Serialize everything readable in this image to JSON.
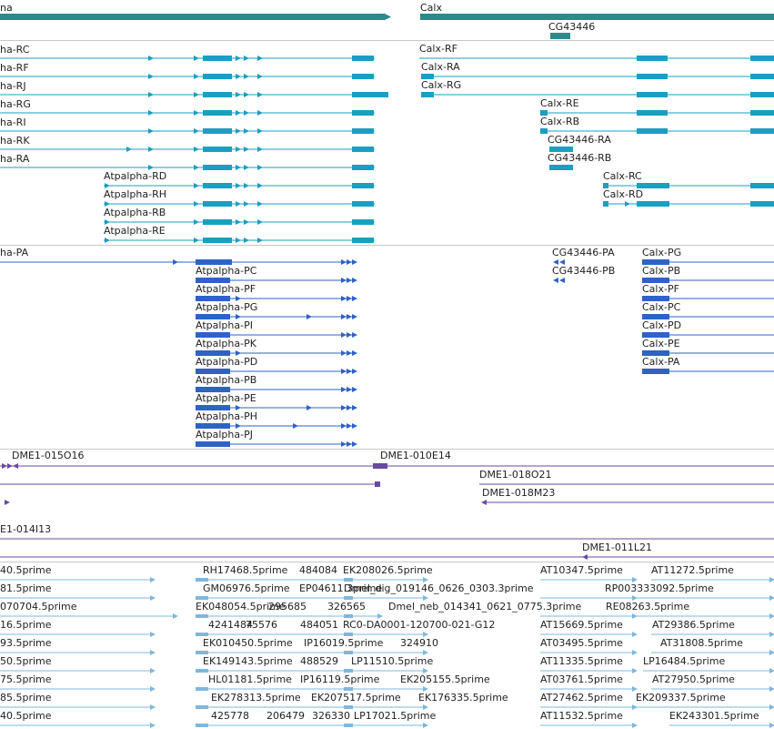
{
  "colors": {
    "summary": "#2b8a8a",
    "transcript_cyan": "#1a9fc0",
    "transcript_blue": "#2e62c6",
    "clone_purple": "#6a4aa0",
    "est_lightblue": "#7db8dc",
    "separator": "#c8c8c8"
  },
  "tracks": {
    "genes": {
      "labels": [
        "na",
        "Calx",
        "CG43446"
      ]
    },
    "transcripts_cyan": {
      "labels": [
        "ha-RC",
        "ha-RF",
        "ha-RJ",
        "ha-RG",
        "ha-RI",
        "ha-RK",
        "ha-RA",
        "Atpalpha-RD",
        "Atpalpha-RH",
        "Atpalpha-RB",
        "Atpalpha-RE",
        "Calx-RF",
        "Calx-RA",
        "Calx-RG",
        "Calx-RE",
        "Calx-RB",
        "CG43446-RA",
        "CG43446-RB",
        "Calx-RC",
        "Calx-RD"
      ]
    },
    "transcripts_blue": {
      "labels": [
        "ha-PA",
        "Atpalpha-PC",
        "Atpalpha-PF",
        "Atpalpha-PG",
        "Atpalpha-PI",
        "Atpalpha-PK",
        "Atpalpha-PD",
        "Atpalpha-PB",
        "Atpalpha-PE",
        "Atpalpha-PH",
        "Atpalpha-PJ",
        "CG43446-PA",
        "CG43446-PB",
        "Calx-PG",
        "Calx-PB",
        "Calx-PF",
        "Calx-PC",
        "Calx-PD",
        "Calx-PE",
        "Calx-PA"
      ]
    },
    "clones": {
      "labels": [
        "DME1-015O16",
        "DME1-010E14",
        "DME1-018O21",
        "DME1-018M23",
        "E1-014I13",
        "DME1-011L21"
      ]
    },
    "ests": {
      "labels": [
        "40.5prime",
        "RH17468.5prime",
        "484084",
        "EK208026.5prime",
        "AT10347.5prime",
        "AT11272.5prime",
        "81.5prime",
        "GM06976.5prime",
        "EP04611.3prime",
        "Dmel_dig_019146_0626_0303.3prime",
        "RP003333092.5prime",
        "070704.5prime",
        "EK048054.5prime",
        "295685",
        "326565",
        "Dmel_neb_014341_0621_0775.3prime",
        "RE08263.5prime",
        "16.5prime",
        "4241484",
        "75576",
        "484051",
        "RC0-DA0001-120700-021-G12",
        "AT15669.5prime",
        "AT29386.5prime",
        "93.5prime",
        "EK010450.5prime",
        "IP16019.5prime",
        "324910",
        "AT03495.5prime",
        "AT31808.5prime",
        "50.5prime",
        "EK149143.5prime",
        "488529",
        "LP11510.5prime",
        "AT11335.5prime",
        "LP16484.5prime",
        "75.5prime",
        "HL01181.5prime",
        "IP16119.5prime",
        "EK205155.5prime",
        "AT03761.5prime",
        "AT27950.5prime",
        "85.5prime",
        "EK278313.5prime",
        "EK207517.5prime",
        "EK176335.5prime",
        "AT27462.5prime",
        "EK209337.5prime",
        "40.5prime",
        "425778",
        "206479",
        "326330",
        "LP17021.5prime",
        "AT11532.5prime",
        "EK243301.5prime"
      ]
    }
  }
}
